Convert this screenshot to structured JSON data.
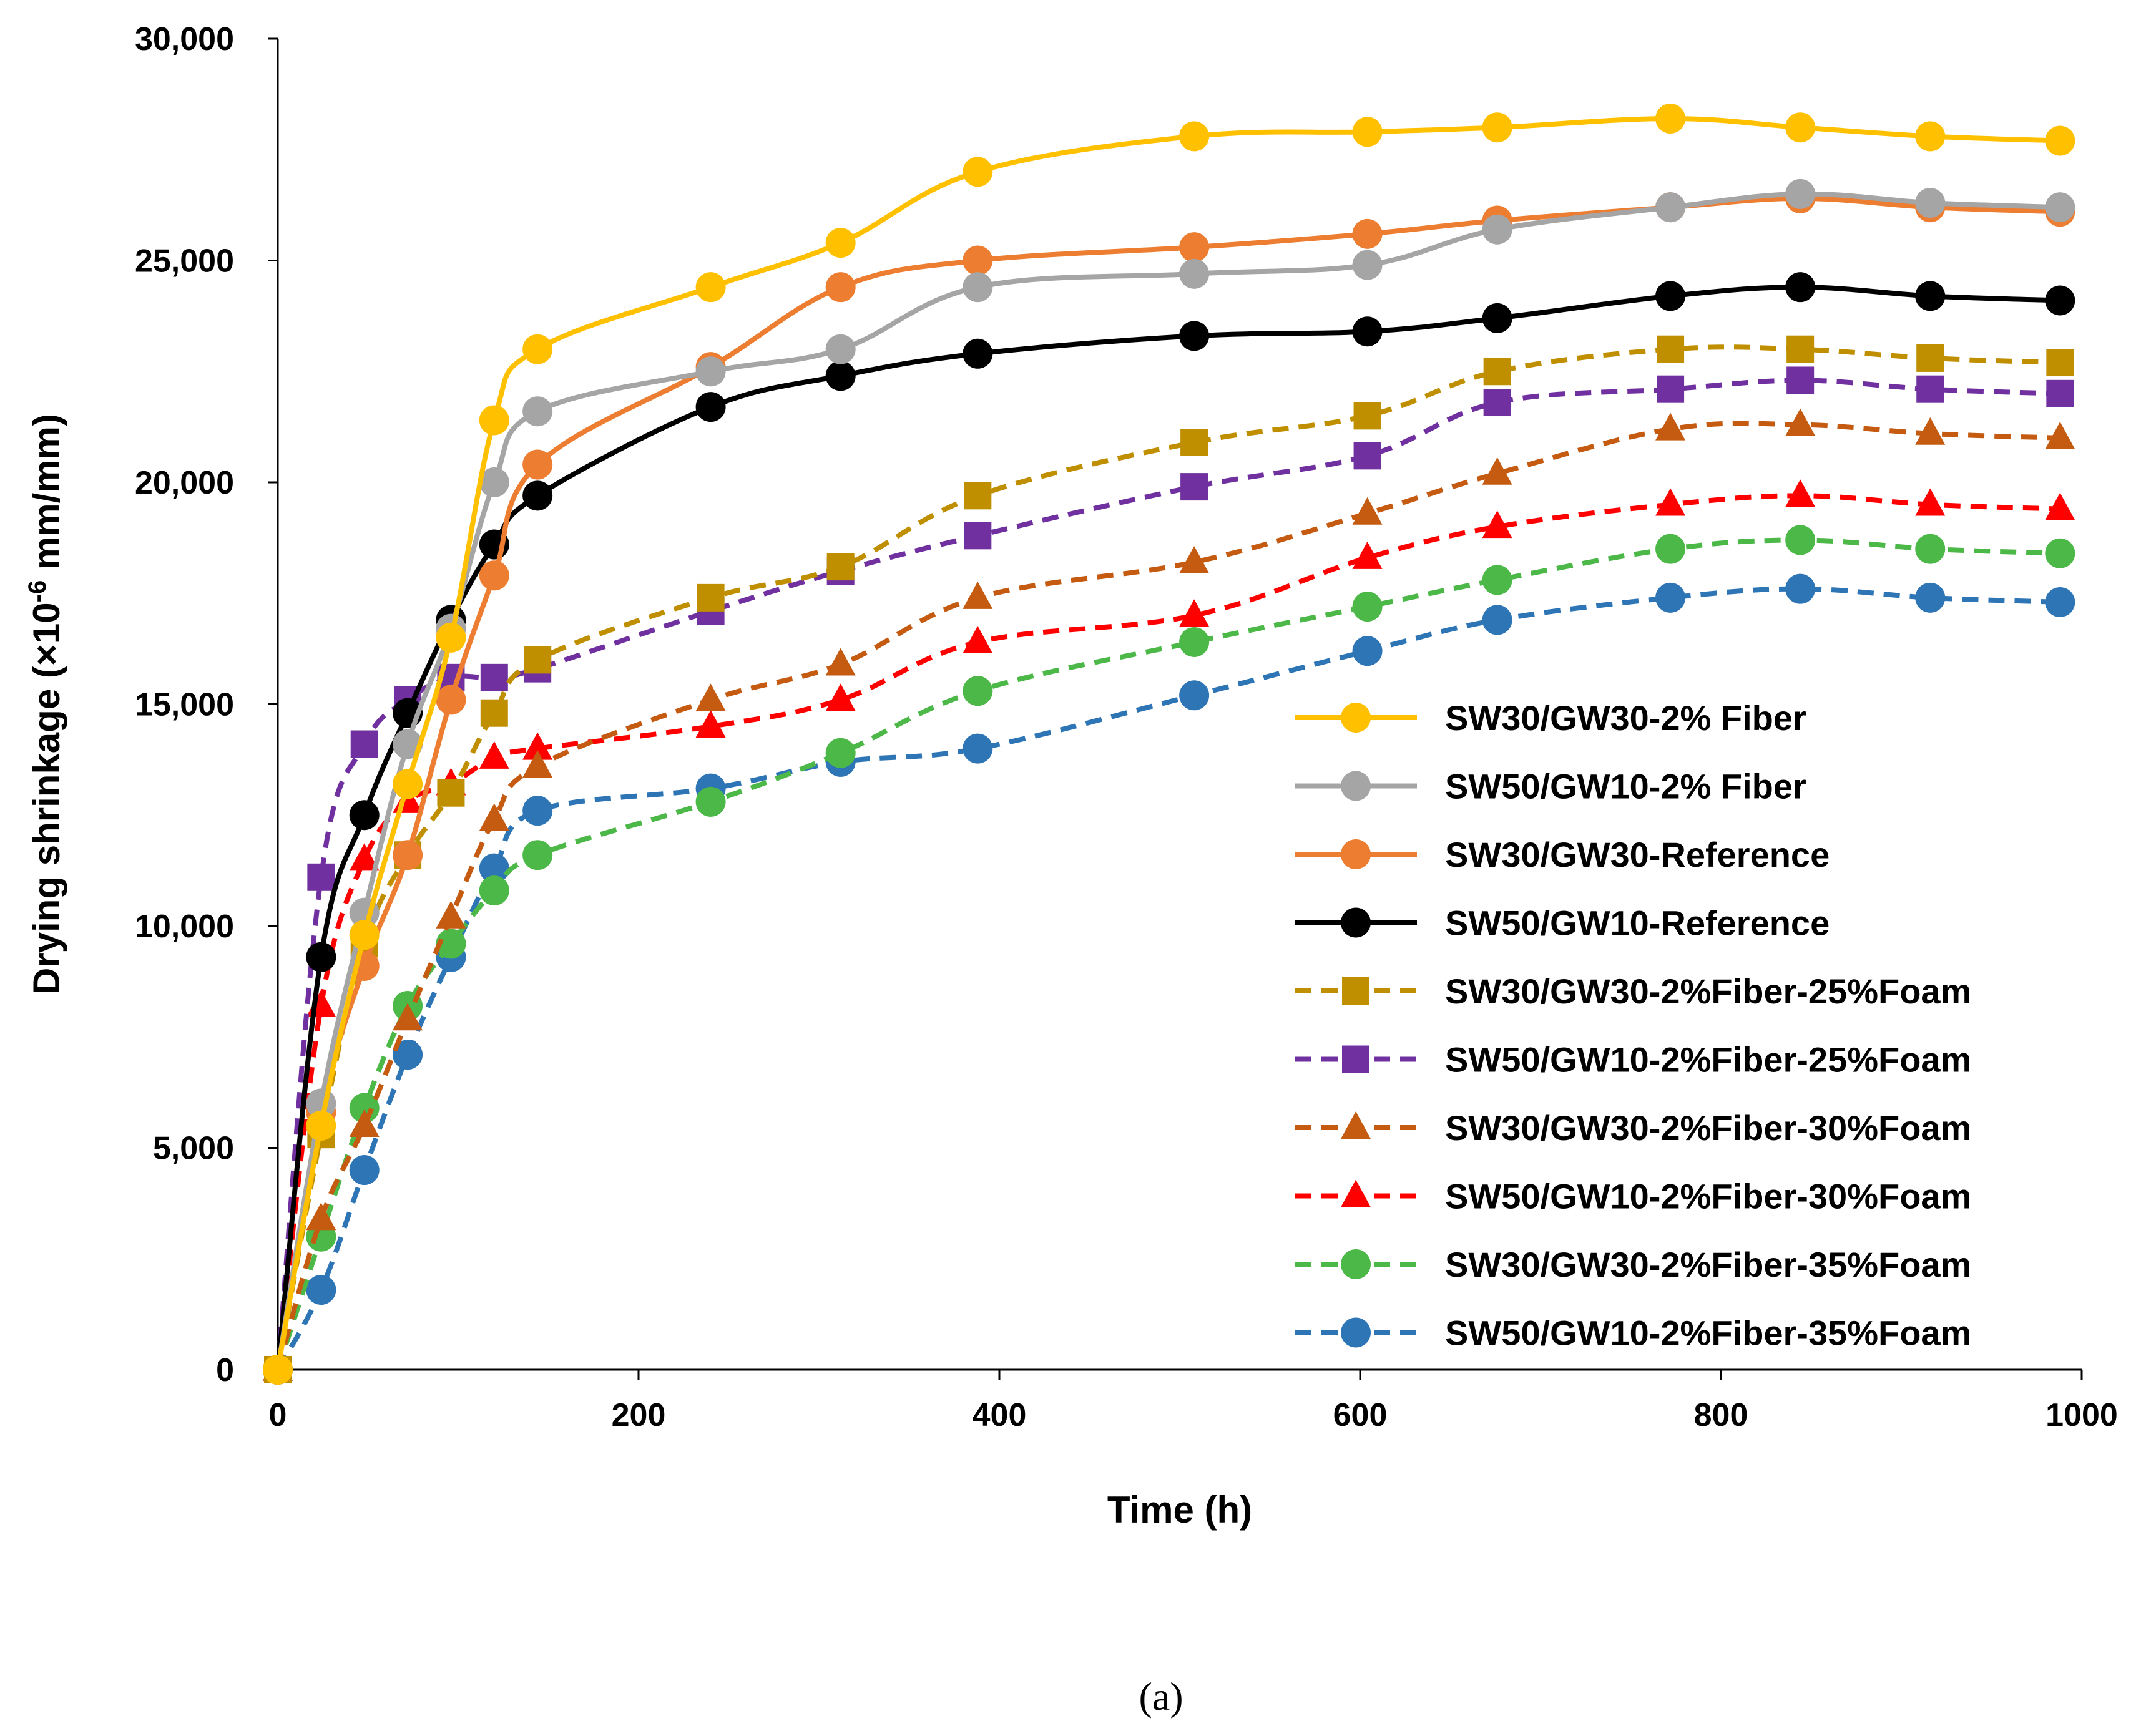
{
  "chart_data": {
    "type": "line",
    "caption": "(a)",
    "xlabel": "Time (h)",
    "ylabel_main": "Drying shrinkage (×10",
    "ylabel_sup": "-6",
    "ylabel_tail": " mm/mm)",
    "xlim": [
      0,
      1000
    ],
    "ylim": [
      0,
      30000
    ],
    "xticks": [
      0,
      200,
      400,
      600,
      800,
      1000
    ],
    "xtick_labels": [
      "0",
      "200",
      "400",
      "600",
      "800",
      "1000"
    ],
    "yticks": [
      0,
      5000,
      10000,
      15000,
      20000,
      25000,
      30000
    ],
    "ytick_labels": [
      "0",
      "5,000",
      "10,000",
      "15,000",
      "20,000",
      "25,000",
      "30,000"
    ],
    "grid": false,
    "legend_position": "lower-right",
    "x": [
      0,
      24,
      48,
      72,
      96,
      120,
      144,
      240,
      312,
      388,
      508,
      604,
      676,
      772,
      844,
      916,
      988
    ],
    "series": [
      {
        "name": "SW30/GW30-2% Fiber",
        "color": "#FFC000",
        "dash": "solid",
        "marker": "circle",
        "values": [
          0,
          5500,
          9800,
          13200,
          16500,
          21400,
          23000,
          24400,
          25400,
          27000,
          27800,
          27900,
          28000,
          28200,
          28000,
          27800,
          27700
        ]
      },
      {
        "name": "SW50/GW10-2% Fiber",
        "color": "#A5A5A5",
        "dash": "solid",
        "marker": "circle",
        "values": [
          0,
          6000,
          10300,
          14100,
          16700,
          20000,
          21600,
          22500,
          23000,
          24400,
          24700,
          24900,
          25700,
          26200,
          26500,
          26300,
          26200
        ]
      },
      {
        "name": "SW30/GW30-Reference",
        "color": "#ED7D31",
        "dash": "solid",
        "marker": "circle",
        "values": [
          0,
          5800,
          9100,
          11600,
          15100,
          17900,
          20400,
          22600,
          24400,
          25000,
          25300,
          25600,
          25900,
          26200,
          26400,
          26200,
          26100
        ]
      },
      {
        "name": "SW50/GW10-Reference",
        "color": "#000000",
        "dash": "solid",
        "marker": "circle",
        "values": [
          0,
          9300,
          12500,
          14800,
          16900,
          18600,
          19700,
          21700,
          22400,
          22900,
          23300,
          23400,
          23700,
          24200,
          24400,
          24200,
          24100
        ]
      },
      {
        "name": "SW30/GW30-2%Fiber-25%Foam",
        "color": "#BF8F00",
        "dash": "dashed",
        "marker": "square",
        "values": [
          0,
          5300,
          9600,
          11600,
          13000,
          14800,
          16000,
          17400,
          18100,
          19700,
          20900,
          21500,
          22500,
          23000,
          23000,
          22800,
          22700
        ]
      },
      {
        "name": "SW50/GW10-2%Fiber-25%Foam",
        "color": "#7030A0",
        "dash": "dashed",
        "marker": "square",
        "values": [
          0,
          11100,
          14100,
          15100,
          15600,
          15600,
          15800,
          17100,
          18000,
          18800,
          19900,
          20600,
          21800,
          22100,
          22300,
          22100,
          22000
        ]
      },
      {
        "name": "SW30/GW30-2%Fiber-30%Foam",
        "color": "#C55A11",
        "dash": "dashed",
        "marker": "triangle",
        "values": [
          0,
          3400,
          5500,
          7900,
          10200,
          12400,
          13600,
          15100,
          15900,
          17400,
          18200,
          19300,
          20200,
          21200,
          21300,
          21100,
          21000
        ]
      },
      {
        "name": "SW50/GW10-2%Fiber-30%Foam",
        "color": "#FF0000",
        "dash": "dashed",
        "marker": "triangle",
        "values": [
          0,
          8200,
          11500,
          12800,
          13200,
          13800,
          14000,
          14500,
          15100,
          16400,
          17000,
          18300,
          19000,
          19500,
          19700,
          19500,
          19400
        ]
      },
      {
        "name": "SW30/GW30-2%Fiber-35%Foam",
        "color": "#4CB848",
        "dash": "dashed",
        "marker": "circle",
        "values": [
          0,
          3000,
          5900,
          8200,
          9600,
          10800,
          11600,
          12800,
          13900,
          15300,
          16400,
          17200,
          17800,
          18500,
          18700,
          18500,
          18400
        ]
      },
      {
        "name": "SW50/GW10-2%Fiber-35%Foam",
        "color": "#2E75B6",
        "dash": "dashed",
        "marker": "circle",
        "values": [
          0,
          1800,
          4500,
          7100,
          9300,
          11300,
          12600,
          13100,
          13700,
          14000,
          15200,
          16200,
          16900,
          17400,
          17600,
          17400,
          17300
        ]
      }
    ]
  }
}
